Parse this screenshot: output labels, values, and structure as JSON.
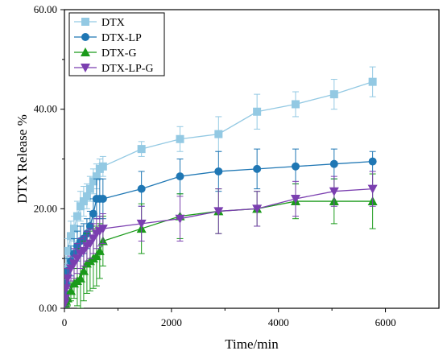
{
  "chart_data": {
    "type": "line",
    "title": "",
    "xlabel": "Time/min",
    "ylabel": "DTX Release %",
    "xlim": [
      0,
      7000
    ],
    "ylim": [
      0,
      60
    ],
    "x_ticks": [
      0,
      2000,
      4000,
      6000
    ],
    "x_tick_labels": [
      "0",
      "2000",
      "4000",
      "6000"
    ],
    "y_ticks": [
      0,
      20,
      40,
      60
    ],
    "y_tick_labels": [
      "0.00",
      "20.00",
      "40.00",
      "60.00"
    ],
    "grid": false,
    "legend_position": "top-left",
    "series": [
      {
        "name": "DTX",
        "color": "#93c9e3",
        "marker": "square",
        "x": [
          5,
          15,
          30,
          60,
          120,
          180,
          240,
          300,
          360,
          420,
          480,
          540,
          600,
          660,
          720,
          1440,
          2160,
          2880,
          3600,
          4320,
          5040,
          5760
        ],
        "y": [
          2.5,
          5.0,
          8.0,
          11.5,
          14.5,
          16.0,
          18.5,
          20.5,
          21.5,
          22.5,
          24.0,
          25.5,
          26.5,
          28.0,
          28.5,
          32.0,
          34.0,
          35.0,
          39.5,
          41.0,
          43.0,
          45.5
        ],
        "err": [
          1.5,
          2.0,
          2.5,
          2.5,
          3.0,
          2.5,
          3.0,
          3.0,
          3.0,
          2.5,
          2.5,
          2.5,
          2.5,
          2.0,
          2.0,
          1.5,
          2.5,
          3.5,
          3.5,
          2.5,
          3.0,
          3.0
        ]
      },
      {
        "name": "DTX-LP",
        "color": "#1f77b4",
        "marker": "circle",
        "x": [
          5,
          15,
          30,
          60,
          120,
          180,
          240,
          300,
          360,
          420,
          480,
          540,
          600,
          660,
          720,
          1440,
          2160,
          2880,
          3600,
          4320,
          5040,
          5760
        ],
        "y": [
          1.0,
          3.0,
          5.0,
          7.5,
          9.5,
          11.0,
          12.5,
          13.5,
          14.0,
          15.0,
          16.5,
          19.0,
          22.0,
          22.0,
          22.0,
          24.0,
          26.5,
          27.5,
          28.0,
          28.5,
          29.0,
          29.5
        ],
        "err": [
          1.0,
          1.5,
          2.0,
          2.5,
          3.0,
          3.0,
          3.0,
          3.0,
          3.0,
          3.0,
          3.0,
          3.0,
          4.0,
          4.0,
          4.0,
          3.5,
          3.5,
          4.0,
          4.0,
          3.5,
          3.0,
          2.0
        ]
      },
      {
        "name": "DTX-G",
        "color": "#1a9a1a",
        "marker": "triangle-up",
        "x": [
          5,
          15,
          30,
          60,
          120,
          180,
          240,
          300,
          360,
          420,
          480,
          540,
          600,
          660,
          720,
          1440,
          2160,
          2880,
          3600,
          4320,
          5040,
          5760
        ],
        "y": [
          0.5,
          1.0,
          1.5,
          2.0,
          3.5,
          5.0,
          5.5,
          6.0,
          7.5,
          9.0,
          9.5,
          10.0,
          10.5,
          11.5,
          13.5,
          16.0,
          18.5,
          19.5,
          20.0,
          21.5,
          21.5,
          21.5
        ],
        "err": [
          0.5,
          0.5,
          1.0,
          1.5,
          2.0,
          3.0,
          5.0,
          6.0,
          6.0,
          6.0,
          6.0,
          6.0,
          6.0,
          5.5,
          5.0,
          5.0,
          4.5,
          4.5,
          3.5,
          3.5,
          4.5,
          5.5
        ]
      },
      {
        "name": "DTX-LP-G",
        "color": "#7b3fb0",
        "marker": "triangle-down",
        "x": [
          5,
          15,
          30,
          60,
          120,
          180,
          240,
          300,
          360,
          420,
          480,
          540,
          600,
          660,
          720,
          1440,
          2160,
          2880,
          3600,
          4320,
          5040,
          5760
        ],
        "y": [
          1.0,
          2.0,
          4.0,
          6.0,
          8.0,
          9.0,
          10.0,
          11.0,
          11.5,
          12.5,
          13.0,
          14.0,
          15.0,
          15.5,
          16.0,
          17.0,
          18.0,
          19.5,
          20.0,
          22.0,
          23.5,
          24.0
        ],
        "err": [
          1.0,
          1.5,
          2.0,
          2.0,
          2.5,
          3.0,
          3.0,
          3.0,
          3.0,
          3.0,
          3.0,
          3.0,
          3.0,
          3.0,
          3.0,
          3.5,
          4.5,
          4.5,
          3.5,
          3.5,
          3.0,
          3.5
        ]
      }
    ]
  }
}
